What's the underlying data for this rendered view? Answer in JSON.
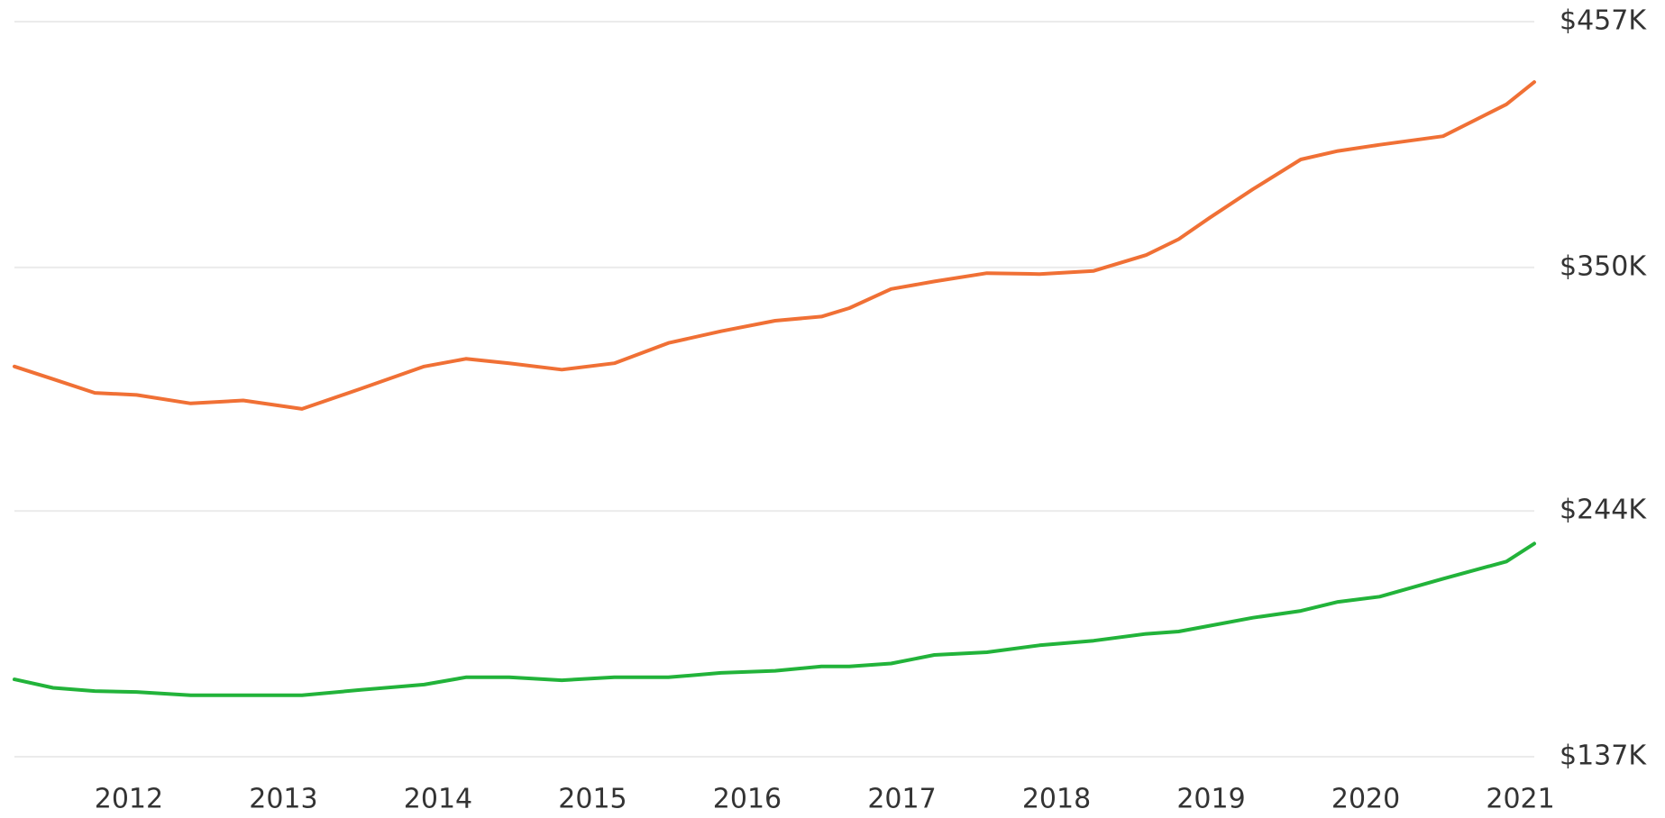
{
  "chart_data": {
    "type": "line",
    "x": [
      2011.26,
      2011.51,
      2011.78,
      2012.05,
      2012.4,
      2012.74,
      2013.12,
      2013.5,
      2013.91,
      2014.18,
      2014.46,
      2014.8,
      2015.14,
      2015.49,
      2015.83,
      2016.18,
      2016.48,
      2016.66,
      2016.93,
      2017.21,
      2017.55,
      2017.89,
      2018.24,
      2018.58,
      2018.79,
      2018.99,
      2019.27,
      2019.58,
      2019.82,
      2020.09,
      2020.5,
      2020.91,
      2021.09
    ],
    "series": [
      {
        "color": "#f07035",
        "values": [
          306900,
          301400,
          295400,
          294500,
          290800,
          292100,
          288400,
          297200,
          306900,
          310200,
          308300,
          305500,
          308300,
          317100,
          322200,
          326800,
          328600,
          332300,
          340600,
          343900,
          347500,
          347100,
          348500,
          355400,
          362300,
          371600,
          384000,
          397000,
          400700,
          403400,
          407100,
          421000,
          430700
        ]
      },
      {
        "color": "#22b33a",
        "values": [
          170700,
          167000,
          165600,
          165200,
          163800,
          163800,
          163800,
          166100,
          168400,
          171600,
          171600,
          170300,
          171600,
          171600,
          173500,
          174400,
          176300,
          176300,
          177600,
          181300,
          182500,
          185500,
          187500,
          190500,
          191500,
          194000,
          197500,
          200500,
          204400,
          206700,
          214500,
          222000,
          229800
        ]
      }
    ],
    "xlim": [
      2011.26,
      2021.09
    ],
    "xticks": [
      2012,
      2013,
      2014,
      2015,
      2016,
      2017,
      2018,
      2019,
      2020,
      2021
    ],
    "ylim": [
      137000,
      457000
    ],
    "yticks": [
      {
        "value": 137000,
        "label": "$137K"
      },
      {
        "value": 244000,
        "label": "$244K"
      },
      {
        "value": 350000,
        "label": "$350K"
      },
      {
        "value": 457000,
        "label": "$457K"
      }
    ],
    "grid": true
  }
}
